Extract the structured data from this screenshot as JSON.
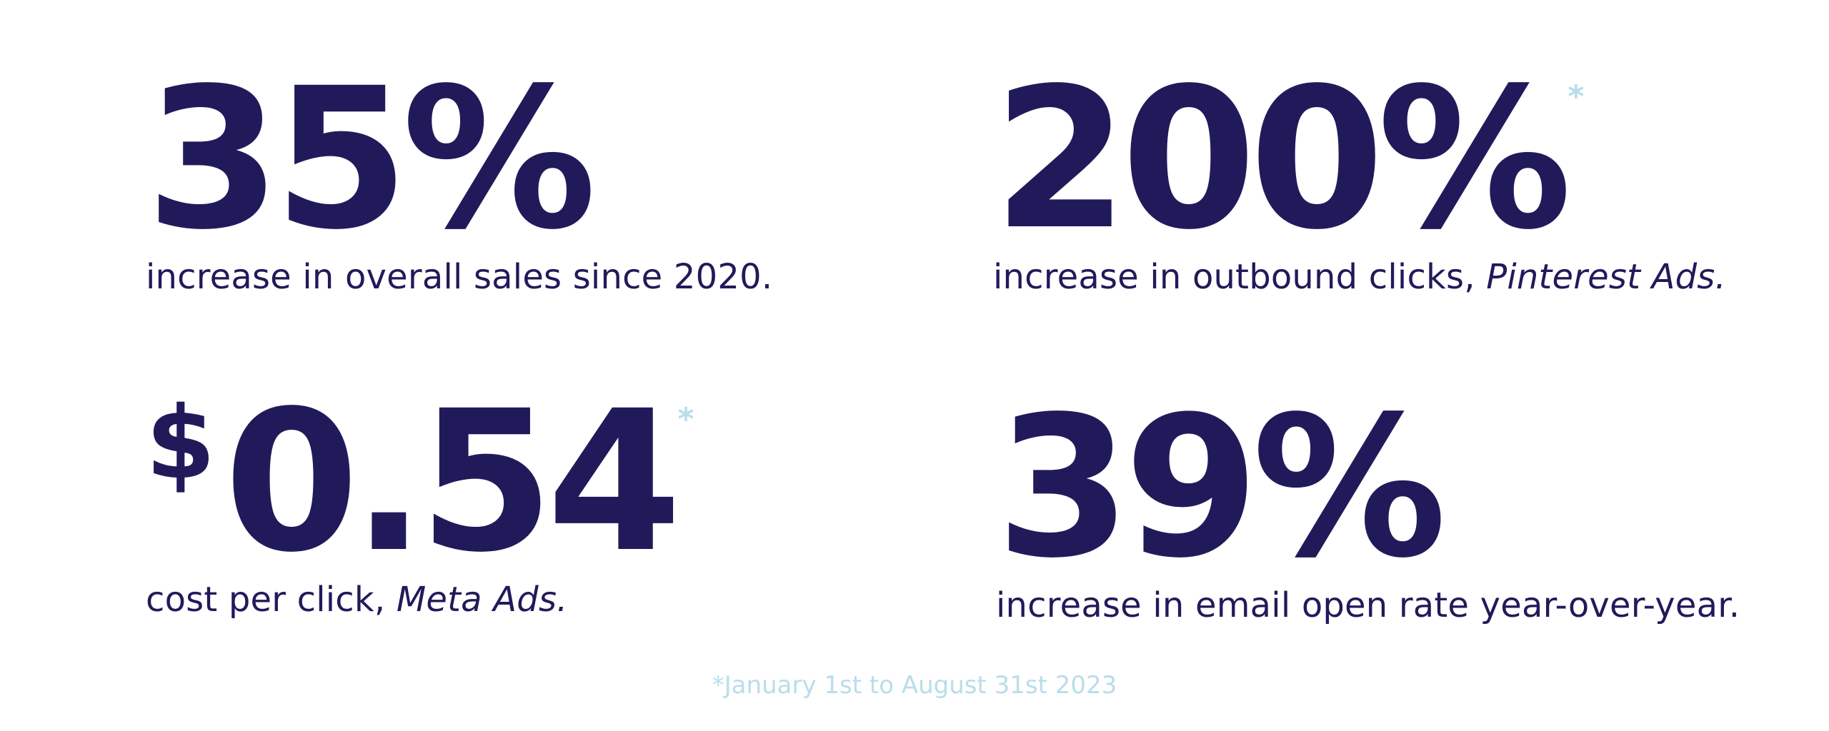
{
  "colors": {
    "primary": "#211a5a",
    "accent": "#b9ddeb",
    "background": "#ffffff"
  },
  "stats": [
    {
      "value": "35%",
      "has_asterisk": false,
      "caption": "increase in overall sales since 2020.",
      "caption_emphasis": ""
    },
    {
      "value": "200%",
      "has_asterisk": true,
      "caption": "increase in outbound clicks, ",
      "caption_emphasis": "Pinterest Ads."
    },
    {
      "currency": "$",
      "value": "0.54",
      "has_asterisk": true,
      "caption": "cost per click, ",
      "caption_emphasis": "Meta Ads."
    },
    {
      "value": "39%",
      "has_asterisk": false,
      "caption": "increase in email open rate year-over-year.",
      "caption_emphasis": ""
    }
  ],
  "asterisk_symbol": "*",
  "footnote": "*January 1st to August 31st 2023"
}
